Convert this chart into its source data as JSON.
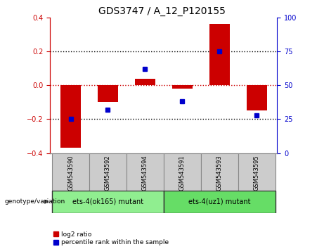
{
  "title": "GDS3747 / A_12_P120155",
  "samples": [
    "GSM543590",
    "GSM543592",
    "GSM543594",
    "GSM543591",
    "GSM543593",
    "GSM543595"
  ],
  "log2_ratio": [
    -0.37,
    -0.1,
    0.04,
    -0.02,
    0.36,
    -0.15
  ],
  "percentile_rank": [
    25,
    32,
    62,
    38,
    75,
    28
  ],
  "group1_label": "ets-4(ok165) mutant",
  "group2_label": "ets-4(uz1) mutant",
  "group1_color": "#90EE90",
  "group2_color": "#66DD66",
  "group1_indices": [
    0,
    1,
    2
  ],
  "group2_indices": [
    3,
    4,
    5
  ],
  "bar_color": "#CC0000",
  "dot_color": "#0000CC",
  "ylim_left": [
    -0.4,
    0.4
  ],
  "ylim_right": [
    0,
    100
  ],
  "yticks_left": [
    -0.4,
    -0.2,
    0.0,
    0.2,
    0.4
  ],
  "yticks_right": [
    0,
    25,
    50,
    75,
    100
  ],
  "bg_color": "#FFFFFF",
  "label_log2": "log2 ratio",
  "label_percentile": "percentile rank within the sample",
  "genotype_label": "genotype/variation"
}
